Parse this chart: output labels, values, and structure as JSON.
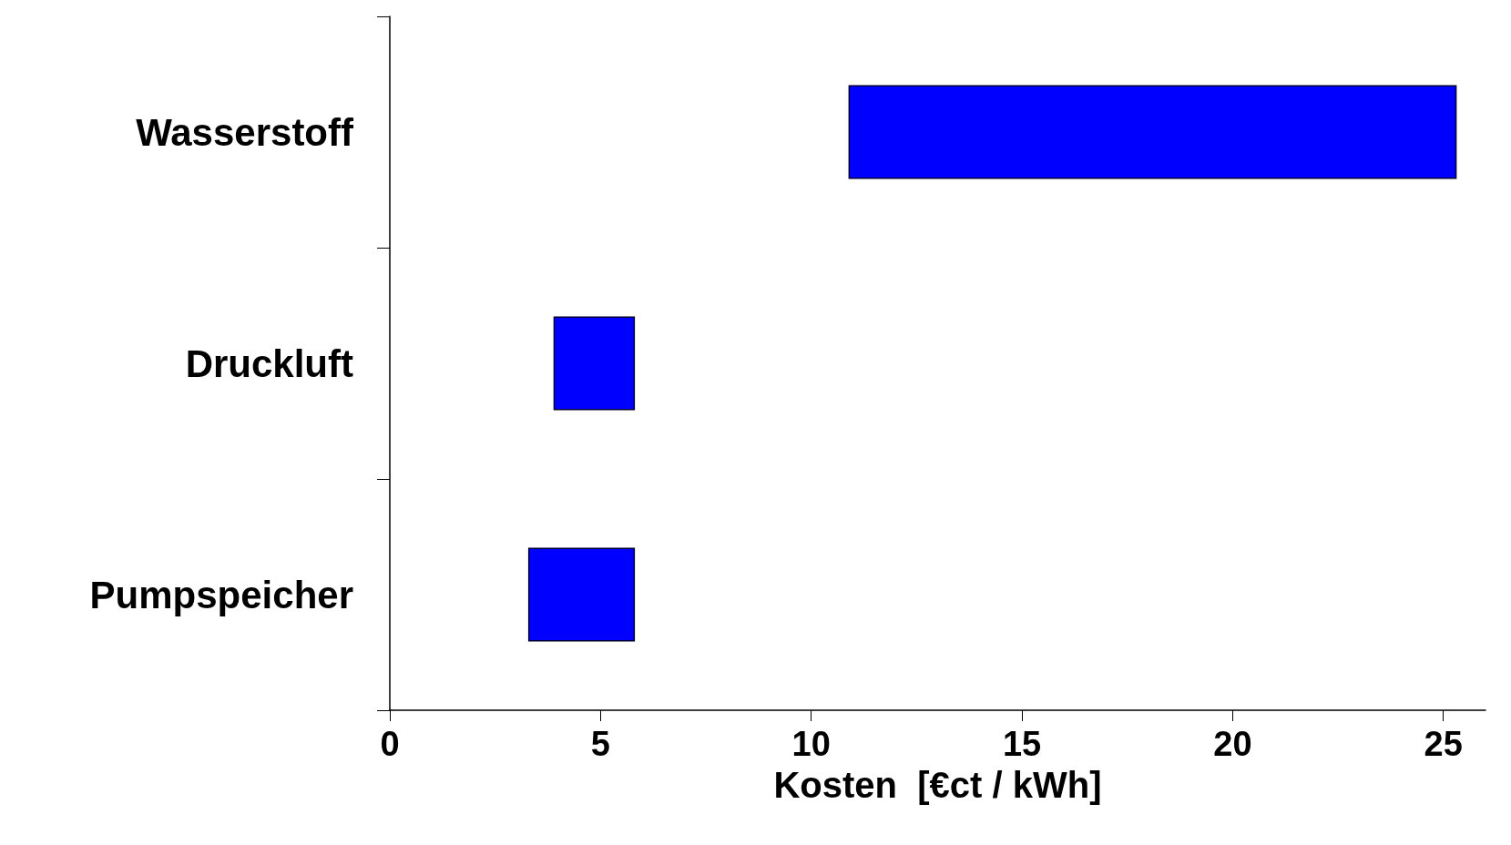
{
  "chart_data": {
    "type": "bar",
    "orientation": "horizontal",
    "xlabel": "Kosten  [€ct / kWh]",
    "categories": [
      "Wasserstoff",
      "Druckluft",
      "Pumpspeicher"
    ],
    "base": [
      10.9,
      3.9,
      3.3
    ],
    "values": [
      14.4,
      1.9,
      2.5
    ],
    "color": "#0000ff",
    "xlim": [
      0,
      26
    ],
    "xticks": [
      0,
      5,
      10,
      15,
      20,
      25
    ],
    "grid": false
  }
}
